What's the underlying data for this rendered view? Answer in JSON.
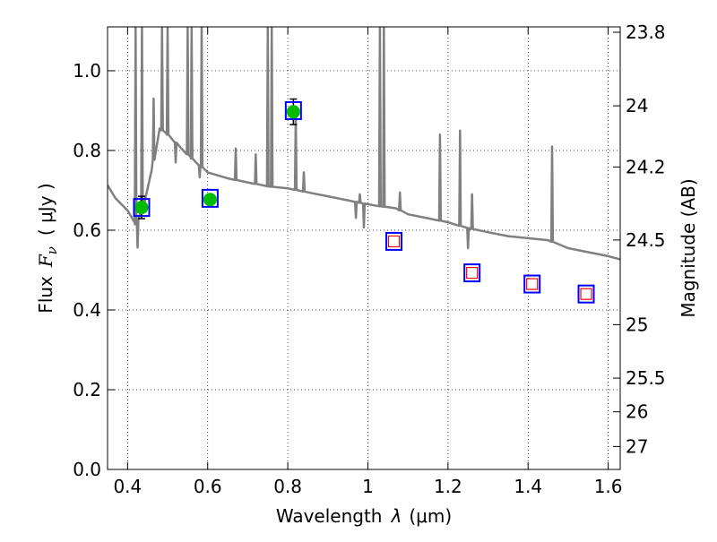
{
  "chart_data": {
    "type": "scatter",
    "xlabel_prefix": "Wavelength",
    "xlabel_symbol": "λ",
    "xlabel_unit": "(μm)",
    "ylabel_prefix": "Flux",
    "ylabel_symbol": "F",
    "ylabel_subscript": "ν",
    "ylabel_unit": "( μJy )",
    "y2label": "Magnitude (AB)",
    "xlim": [
      0.35,
      1.63
    ],
    "ylim": [
      0.0,
      1.11
    ],
    "x_scale": "linear",
    "y2_scale": "AB magnitude (m = 23.9 − 2.5·log10 Fν[μJy])",
    "grid": true,
    "legend": "none",
    "x_ticks": [
      {
        "value": 0.4,
        "label": "0.4"
      },
      {
        "value": 0.6,
        "label": "0.6"
      },
      {
        "value": 0.8,
        "label": "0.8"
      },
      {
        "value": 1.0,
        "label": "1"
      },
      {
        "value": 1.2,
        "label": "1.2"
      },
      {
        "value": 1.4,
        "label": "1.4"
      },
      {
        "value": 1.6,
        "label": "1.6"
      }
    ],
    "y_ticks": [
      {
        "value": 0.0,
        "label": "0.0"
      },
      {
        "value": 0.2,
        "label": "0.2"
      },
      {
        "value": 0.4,
        "label": "0.4"
      },
      {
        "value": 0.6,
        "label": "0.6"
      },
      {
        "value": 0.8,
        "label": "0.8"
      },
      {
        "value": 1.0,
        "label": "1.0"
      }
    ],
    "y2_ticks": [
      {
        "value": 23.8,
        "label": "23.8"
      },
      {
        "value": 24.0,
        "label": "24"
      },
      {
        "value": 24.2,
        "label": "24.2"
      },
      {
        "value": 24.5,
        "label": "24.5"
      },
      {
        "value": 25.0,
        "label": "25"
      },
      {
        "value": 25.5,
        "label": "25.5"
      },
      {
        "value": 26.0,
        "label": "26"
      },
      {
        "value": 27.0,
        "label": "27"
      }
    ],
    "series": [
      {
        "kind": "model-spectrum",
        "color": "#808080",
        "continuum": [
          [
            0.35,
            0.713
          ],
          [
            0.37,
            0.68
          ],
          [
            0.4,
            0.65
          ],
          [
            0.42,
            0.615
          ],
          [
            0.44,
            0.66
          ],
          [
            0.46,
            0.75
          ],
          [
            0.48,
            0.855
          ],
          [
            0.5,
            0.84
          ],
          [
            0.53,
            0.81
          ],
          [
            0.56,
            0.78
          ],
          [
            0.6,
            0.745
          ],
          [
            0.65,
            0.73
          ],
          [
            0.7,
            0.72
          ],
          [
            0.75,
            0.71
          ],
          [
            0.8,
            0.705
          ],
          [
            0.85,
            0.695
          ],
          [
            0.9,
            0.685
          ],
          [
            0.95,
            0.675
          ],
          [
            1.0,
            0.665
          ],
          [
            1.03,
            0.66
          ],
          [
            1.07,
            0.655
          ],
          [
            1.1,
            0.64
          ],
          [
            1.15,
            0.63
          ],
          [
            1.2,
            0.62
          ],
          [
            1.25,
            0.605
          ],
          [
            1.3,
            0.595
          ],
          [
            1.35,
            0.585
          ],
          [
            1.4,
            0.58
          ],
          [
            1.45,
            0.575
          ],
          [
            1.5,
            0.555
          ],
          [
            1.55,
            0.545
          ],
          [
            1.6,
            0.535
          ],
          [
            1.63,
            0.527
          ]
        ],
        "lines": [
          {
            "x": 0.42,
            "peak": 1.11
          },
          {
            "x": 0.436,
            "peak": 1.11
          },
          {
            "x": 0.465,
            "peak": 0.93
          },
          {
            "x": 0.486,
            "peak": 1.11
          },
          {
            "x": 0.5,
            "peak": 1.11
          },
          {
            "x": 0.55,
            "peak": 1.11
          },
          {
            "x": 0.56,
            "peak": 1.11
          },
          {
            "x": 0.585,
            "peak": 1.11
          },
          {
            "x": 0.67,
            "peak": 0.805
          },
          {
            "x": 0.72,
            "peak": 0.79
          },
          {
            "x": 0.75,
            "peak": 1.11
          },
          {
            "x": 0.76,
            "peak": 1.11
          },
          {
            "x": 0.82,
            "peak": 0.89
          },
          {
            "x": 0.84,
            "peak": 0.745
          },
          {
            "x": 0.98,
            "peak": 0.69
          },
          {
            "x": 1.03,
            "peak": 1.11
          },
          {
            "x": 1.04,
            "peak": 1.11
          },
          {
            "x": 1.08,
            "peak": 0.695
          },
          {
            "x": 1.18,
            "peak": 0.84
          },
          {
            "x": 1.23,
            "peak": 0.85
          },
          {
            "x": 1.26,
            "peak": 0.69
          },
          {
            "x": 1.46,
            "peak": 0.81
          }
        ],
        "absorptions": [
          {
            "x": 0.425,
            "depth": 0.07
          },
          {
            "x": 0.52,
            "depth": 0.05
          },
          {
            "x": 0.58,
            "depth": 0.03
          },
          {
            "x": 0.97,
            "depth": 0.04
          },
          {
            "x": 0.99,
            "depth": 0.06
          },
          {
            "x": 1.25,
            "depth": 0.05
          }
        ]
      },
      {
        "kind": "model-photometry",
        "marker": "open-square",
        "stroke": "#0000ff",
        "points": [
          {
            "x": 0.435,
            "y": 0.657
          },
          {
            "x": 0.606,
            "y": 0.68
          },
          {
            "x": 0.814,
            "y": 0.9
          },
          {
            "x": 1.065,
            "y": 0.572
          },
          {
            "x": 1.26,
            "y": 0.493
          },
          {
            "x": 1.41,
            "y": 0.465
          },
          {
            "x": 1.545,
            "y": 0.44
          }
        ]
      },
      {
        "kind": "observed-detections",
        "marker": "filled-circle",
        "fill": "#00bb00",
        "points": [
          {
            "x": 0.435,
            "y": 0.657,
            "err": 0.028
          },
          {
            "x": 0.606,
            "y": 0.677,
            "err": 0.01
          },
          {
            "x": 0.814,
            "y": 0.897,
            "err": 0.032
          }
        ]
      },
      {
        "kind": "observed-limits",
        "marker": "open-square",
        "stroke": "#ff0000",
        "points": [
          {
            "x": 1.065,
            "y": 0.572
          },
          {
            "x": 1.26,
            "y": 0.493
          },
          {
            "x": 1.41,
            "y": 0.465
          },
          {
            "x": 1.545,
            "y": 0.44
          }
        ]
      }
    ]
  }
}
